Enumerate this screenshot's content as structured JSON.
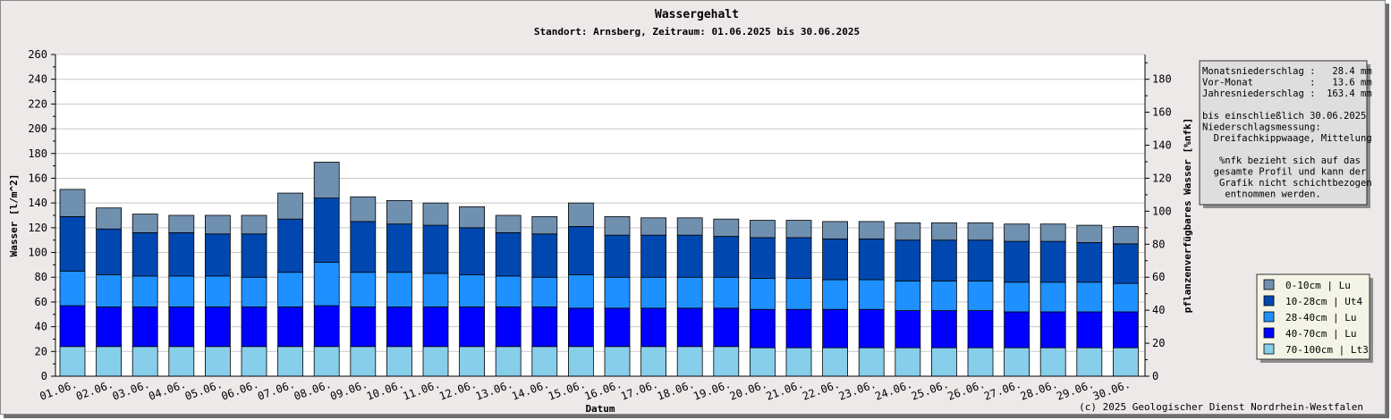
{
  "chart_data": {
    "type": "bar",
    "stacked": true,
    "title": "Wassergehalt",
    "subtitle": "Standort: Arnsberg, Zeitraum: 01.06.2025 bis 30.06.2025",
    "xlabel": "Datum",
    "ylabel": "Wasser [l/m^2]",
    "y2label": "pflanzenverfügbares Wasser [%nfk]",
    "ylim": [
      0,
      260
    ],
    "y2lim": [
      0,
      195
    ],
    "yticks": [
      "0",
      "20",
      "40",
      "60",
      "80",
      "100",
      "120",
      "140",
      "160",
      "180",
      "200",
      "220",
      "240",
      "260"
    ],
    "y2ticks": [
      "0",
      "20",
      "40",
      "60",
      "80",
      "100",
      "120",
      "140",
      "160",
      "180"
    ],
    "grid": true,
    "categories": [
      "01.06.",
      "02.06.",
      "03.06.",
      "04.06.",
      "05.06.",
      "06.06.",
      "07.06.",
      "08.06.",
      "09.06.",
      "10.06.",
      "11.06.",
      "12.06.",
      "13.06.",
      "14.06.",
      "15.06.",
      "16.06.",
      "17.06.",
      "18.06.",
      "19.06.",
      "20.06.",
      "21.06.",
      "22.06.",
      "23.06.",
      "24.06.",
      "25.06.",
      "26.06.",
      "27.06.",
      "28.06.",
      "29.06.",
      "30.06."
    ],
    "series": [
      {
        "name": "70-100cm | Lt3",
        "color": "#87ceeb",
        "values": [
          24,
          24,
          24,
          24,
          24,
          24,
          24,
          24,
          24,
          24,
          24,
          24,
          24,
          24,
          24,
          24,
          24,
          24,
          24,
          23,
          23,
          23,
          23,
          23,
          23,
          23,
          23,
          23,
          23,
          23
        ]
      },
      {
        "name": "40-70cm | Lu",
        "color": "#0000ff",
        "values": [
          33,
          32,
          32,
          32,
          32,
          32,
          32,
          33,
          32,
          32,
          32,
          32,
          32,
          32,
          31,
          31,
          31,
          31,
          31,
          31,
          31,
          31,
          31,
          30,
          30,
          30,
          29,
          29,
          29,
          29
        ]
      },
      {
        "name": "28-40cm | Lu",
        "color": "#1e90ff",
        "values": [
          28,
          26,
          25,
          25,
          25,
          24,
          28,
          35,
          28,
          28,
          27,
          26,
          25,
          24,
          27,
          25,
          25,
          25,
          25,
          25,
          25,
          24,
          24,
          24,
          24,
          24,
          24,
          24,
          24,
          23
        ]
      },
      {
        "name": "10-28cm | Ut4",
        "color": "#0048b0",
        "values": [
          44,
          37,
          35,
          35,
          34,
          35,
          43,
          52,
          41,
          39,
          39,
          38,
          35,
          35,
          39,
          34,
          34,
          34,
          33,
          33,
          33,
          33,
          33,
          33,
          33,
          33,
          33,
          33,
          32,
          32
        ]
      },
      {
        "name": "0-10cm | Lu",
        "color": "#7090b0",
        "values": [
          22,
          17,
          15,
          14,
          15,
          15,
          21,
          29,
          20,
          19,
          18,
          17,
          14,
          14,
          19,
          15,
          14,
          14,
          14,
          14,
          14,
          14,
          14,
          14,
          14,
          14,
          14,
          14,
          14,
          14
        ]
      }
    ]
  },
  "info_box": {
    "lines": [
      "Monatsniederschlag :   28.4 mm",
      "Vor-Monat          :   13.6 mm",
      "Jahresniederschlag :  163.4 mm",
      "",
      "bis einschließlich 30.06.2025",
      "Niederschlagsmessung:",
      "  Dreifachkippwaage, Mittelung",
      "",
      "   %nfk bezieht sich auf das",
      "  gesamte Profil und kann der",
      "   Grafik nicht schichtbezogen",
      "    entnommen werden."
    ]
  },
  "legend": {
    "order": [
      "0-10cm | Lu",
      "10-28cm | Ut4",
      "28-40cm | Lu",
      "40-70cm | Lu",
      "70-100cm | Lt3"
    ]
  },
  "copyright": "(c) 2025 Geologischer Dienst Nordrhein-Westfalen"
}
